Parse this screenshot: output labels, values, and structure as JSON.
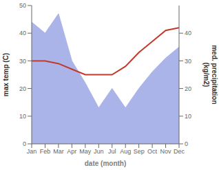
{
  "chart_data": {
    "type": "area",
    "categories": [
      "Jan",
      "Feb",
      "Mar",
      "Apr",
      "May",
      "Jun",
      "Jul",
      "Aug",
      "Sep",
      "Oct",
      "Nov",
      "Dec"
    ],
    "series": [
      {
        "type": "area",
        "color": "#aab4e8",
        "values": [
          44,
          40,
          47,
          30,
          22,
          13,
          20,
          13,
          20,
          26,
          31,
          35
        ]
      },
      {
        "type": "line",
        "color": "#c0392b",
        "axis": "y2",
        "values": [
          30,
          30,
          29,
          27,
          25,
          25,
          25,
          28,
          33,
          37,
          41,
          42
        ]
      }
    ],
    "xlabel": "date (month)",
    "ylabel": "max temp (C)",
    "y2label": "med. precipitation\n(kg/m2)",
    "ylim": [
      0,
      50
    ],
    "yticks": [
      0,
      10,
      20,
      30,
      40,
      50
    ],
    "y2lim": [
      0,
      50
    ],
    "y2ticks": [
      0,
      10,
      20,
      30,
      40
    ],
    "grid": false
  }
}
